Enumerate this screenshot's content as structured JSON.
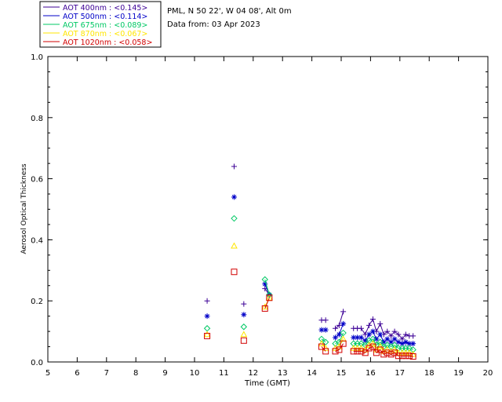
{
  "header": {
    "site_line": "PML, N 50 22', W 04 08', Alt 0m",
    "date_line": "Data from: 03 Apr 2023"
  },
  "legend": [
    {
      "label": "AOT  400nm : <0.145>",
      "color": "#3c0096"
    },
    {
      "label": "AOT  500nm : <0.114>",
      "color": "#0000c8"
    },
    {
      "label": "AOT  675nm : <0.089>",
      "color": "#00c864"
    },
    {
      "label": "AOT  870nm : <0.067>",
      "color": "#ffe600"
    },
    {
      "label": "AOT 1020nm : <0.058>",
      "color": "#d20000"
    }
  ],
  "chart_data": {
    "type": "scatter",
    "title": "",
    "xlabel": "Time (GMT)",
    "ylabel": "Aerosol Optical Thickness",
    "xlim": [
      5,
      20
    ],
    "ylim": [
      0,
      1.0
    ],
    "x_ticks": [
      "5",
      "6",
      "7",
      "8",
      "9",
      "10",
      "11",
      "12",
      "13",
      "14",
      "15",
      "16",
      "17",
      "18",
      "19",
      "20"
    ],
    "y_ticks": [
      "0.0",
      "0.2",
      "0.4",
      "0.6",
      "0.8",
      "1.0"
    ],
    "grid": false,
    "legend_position": "top-left, outside plot",
    "series": [
      {
        "name": "AOT 400nm",
        "color": "#3c0096",
        "marker": "plus",
        "x": [
          10.43,
          11.35,
          11.68,
          12.4,
          12.55,
          14.33,
          14.47,
          14.8,
          14.93,
          15.07,
          15.42,
          15.55,
          15.68,
          15.82,
          15.95,
          16.08,
          16.2,
          16.33,
          16.45,
          16.57,
          16.7,
          16.82,
          16.95,
          17.08,
          17.2,
          17.32,
          17.45
        ],
        "y": [
          0.2,
          0.64,
          0.19,
          0.24,
          0.22,
          0.137,
          0.137,
          0.11,
          0.12,
          0.165,
          0.11,
          0.11,
          0.11,
          0.09,
          0.12,
          0.14,
          0.1,
          0.125,
          0.09,
          0.1,
          0.085,
          0.1,
          0.09,
          0.075,
          0.09,
          0.085,
          0.085
        ]
      },
      {
        "name": "AOT 500nm",
        "color": "#0000c8",
        "marker": "asterisk",
        "x": [
          10.43,
          11.35,
          11.68,
          12.4,
          12.55,
          14.33,
          14.47,
          14.8,
          14.93,
          15.07,
          15.42,
          15.55,
          15.68,
          15.82,
          15.95,
          16.08,
          16.2,
          16.33,
          16.45,
          16.57,
          16.7,
          16.82,
          16.95,
          17.08,
          17.2,
          17.32,
          17.45
        ],
        "y": [
          0.15,
          0.54,
          0.155,
          0.255,
          0.22,
          0.105,
          0.105,
          0.08,
          0.09,
          0.125,
          0.08,
          0.08,
          0.08,
          0.07,
          0.09,
          0.1,
          0.075,
          0.09,
          0.065,
          0.075,
          0.065,
          0.075,
          0.065,
          0.06,
          0.065,
          0.06,
          0.06
        ]
      },
      {
        "name": "AOT 675nm",
        "color": "#00c864",
        "marker": "diamond",
        "x": [
          10.43,
          11.35,
          11.68,
          12.4,
          12.55,
          14.33,
          14.47,
          14.8,
          14.93,
          15.07,
          15.42,
          15.55,
          15.68,
          15.82,
          15.95,
          16.08,
          16.2,
          16.33,
          16.45,
          16.57,
          16.7,
          16.82,
          16.95,
          17.08,
          17.2,
          17.32,
          17.45
        ],
        "y": [
          0.11,
          0.47,
          0.115,
          0.27,
          0.22,
          0.075,
          0.065,
          0.06,
          0.065,
          0.095,
          0.06,
          0.06,
          0.06,
          0.055,
          0.07,
          0.075,
          0.055,
          0.065,
          0.05,
          0.055,
          0.05,
          0.055,
          0.045,
          0.045,
          0.045,
          0.045,
          0.04
        ]
      },
      {
        "name": "AOT 870nm",
        "color": "#ffe600",
        "marker": "triangle",
        "x": [
          10.43,
          11.35,
          11.68,
          12.4,
          12.55,
          14.33,
          14.47,
          14.8,
          14.93,
          15.07,
          15.42,
          15.55,
          15.68,
          15.82,
          15.95,
          16.08,
          16.2,
          16.33,
          16.45,
          16.57,
          16.7,
          16.82,
          16.95,
          17.08,
          17.2,
          17.32,
          17.45
        ],
        "y": [
          0.09,
          0.38,
          0.09,
          0.18,
          0.21,
          0.06,
          0.045,
          0.045,
          0.05,
          0.075,
          0.045,
          0.045,
          0.045,
          0.04,
          0.055,
          0.06,
          0.04,
          0.05,
          0.035,
          0.04,
          0.035,
          0.04,
          0.03,
          0.03,
          0.03,
          0.03,
          0.025
        ]
      },
      {
        "name": "AOT 1020nm",
        "color": "#d20000",
        "marker": "square",
        "x": [
          10.43,
          11.35,
          11.68,
          12.4,
          12.55,
          14.33,
          14.47,
          14.8,
          14.93,
          15.07,
          15.42,
          15.55,
          15.68,
          15.82,
          15.95,
          16.08,
          16.2,
          16.33,
          16.45,
          16.57,
          16.7,
          16.82,
          16.95,
          17.08,
          17.2,
          17.32,
          17.45
        ],
        "y": [
          0.085,
          0.295,
          0.07,
          0.175,
          0.21,
          0.05,
          0.035,
          0.035,
          0.04,
          0.06,
          0.035,
          0.035,
          0.035,
          0.03,
          0.045,
          0.05,
          0.03,
          0.04,
          0.025,
          0.03,
          0.025,
          0.03,
          0.02,
          0.02,
          0.02,
          0.02,
          0.018
        ]
      }
    ]
  }
}
